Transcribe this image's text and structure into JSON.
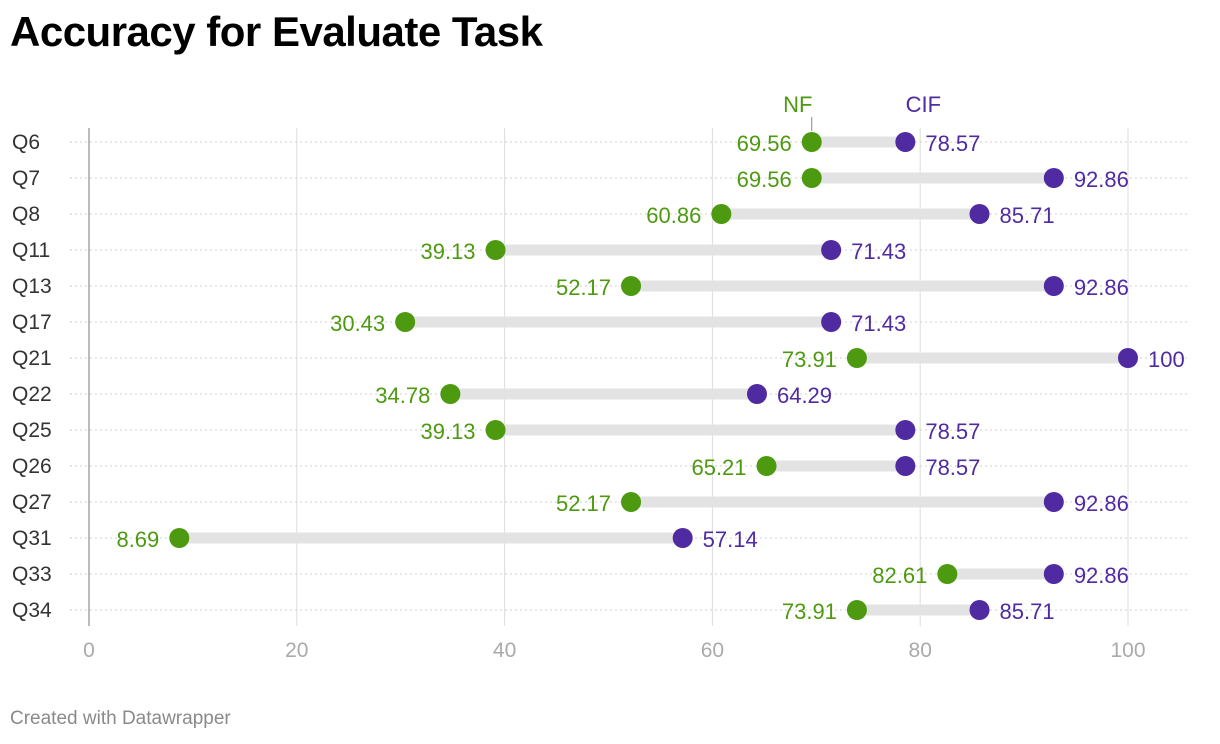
{
  "title": "Accuracy for Evaluate Task",
  "footer": "Created with Datawrapper",
  "colors": {
    "nf": "#4d9a10",
    "cif": "#4f2aa0",
    "range": "#e3e3e3",
    "grid": "#dddddd"
  },
  "chart_data": {
    "type": "range-dot",
    "title": "Accuracy for Evaluate Task",
    "categories": [
      "Q6",
      "Q7",
      "Q8",
      "Q11",
      "Q13",
      "Q17",
      "Q21",
      "Q22",
      "Q25",
      "Q26",
      "Q27",
      "Q31",
      "Q33",
      "Q34"
    ],
    "series": [
      {
        "name": "NF",
        "values": [
          69.56,
          69.56,
          60.86,
          39.13,
          52.17,
          30.43,
          73.91,
          34.78,
          39.13,
          65.21,
          52.17,
          8.69,
          82.61,
          73.91
        ]
      },
      {
        "name": "CIF",
        "values": [
          78.57,
          92.86,
          85.71,
          71.43,
          92.86,
          71.43,
          100,
          64.29,
          78.57,
          78.57,
          92.86,
          57.14,
          92.86,
          85.71
        ]
      }
    ],
    "x_ticks": [
      0,
      20,
      40,
      60,
      80,
      100
    ],
    "xlim": [
      0,
      100
    ],
    "legend": "above-first-row",
    "grid": true
  }
}
